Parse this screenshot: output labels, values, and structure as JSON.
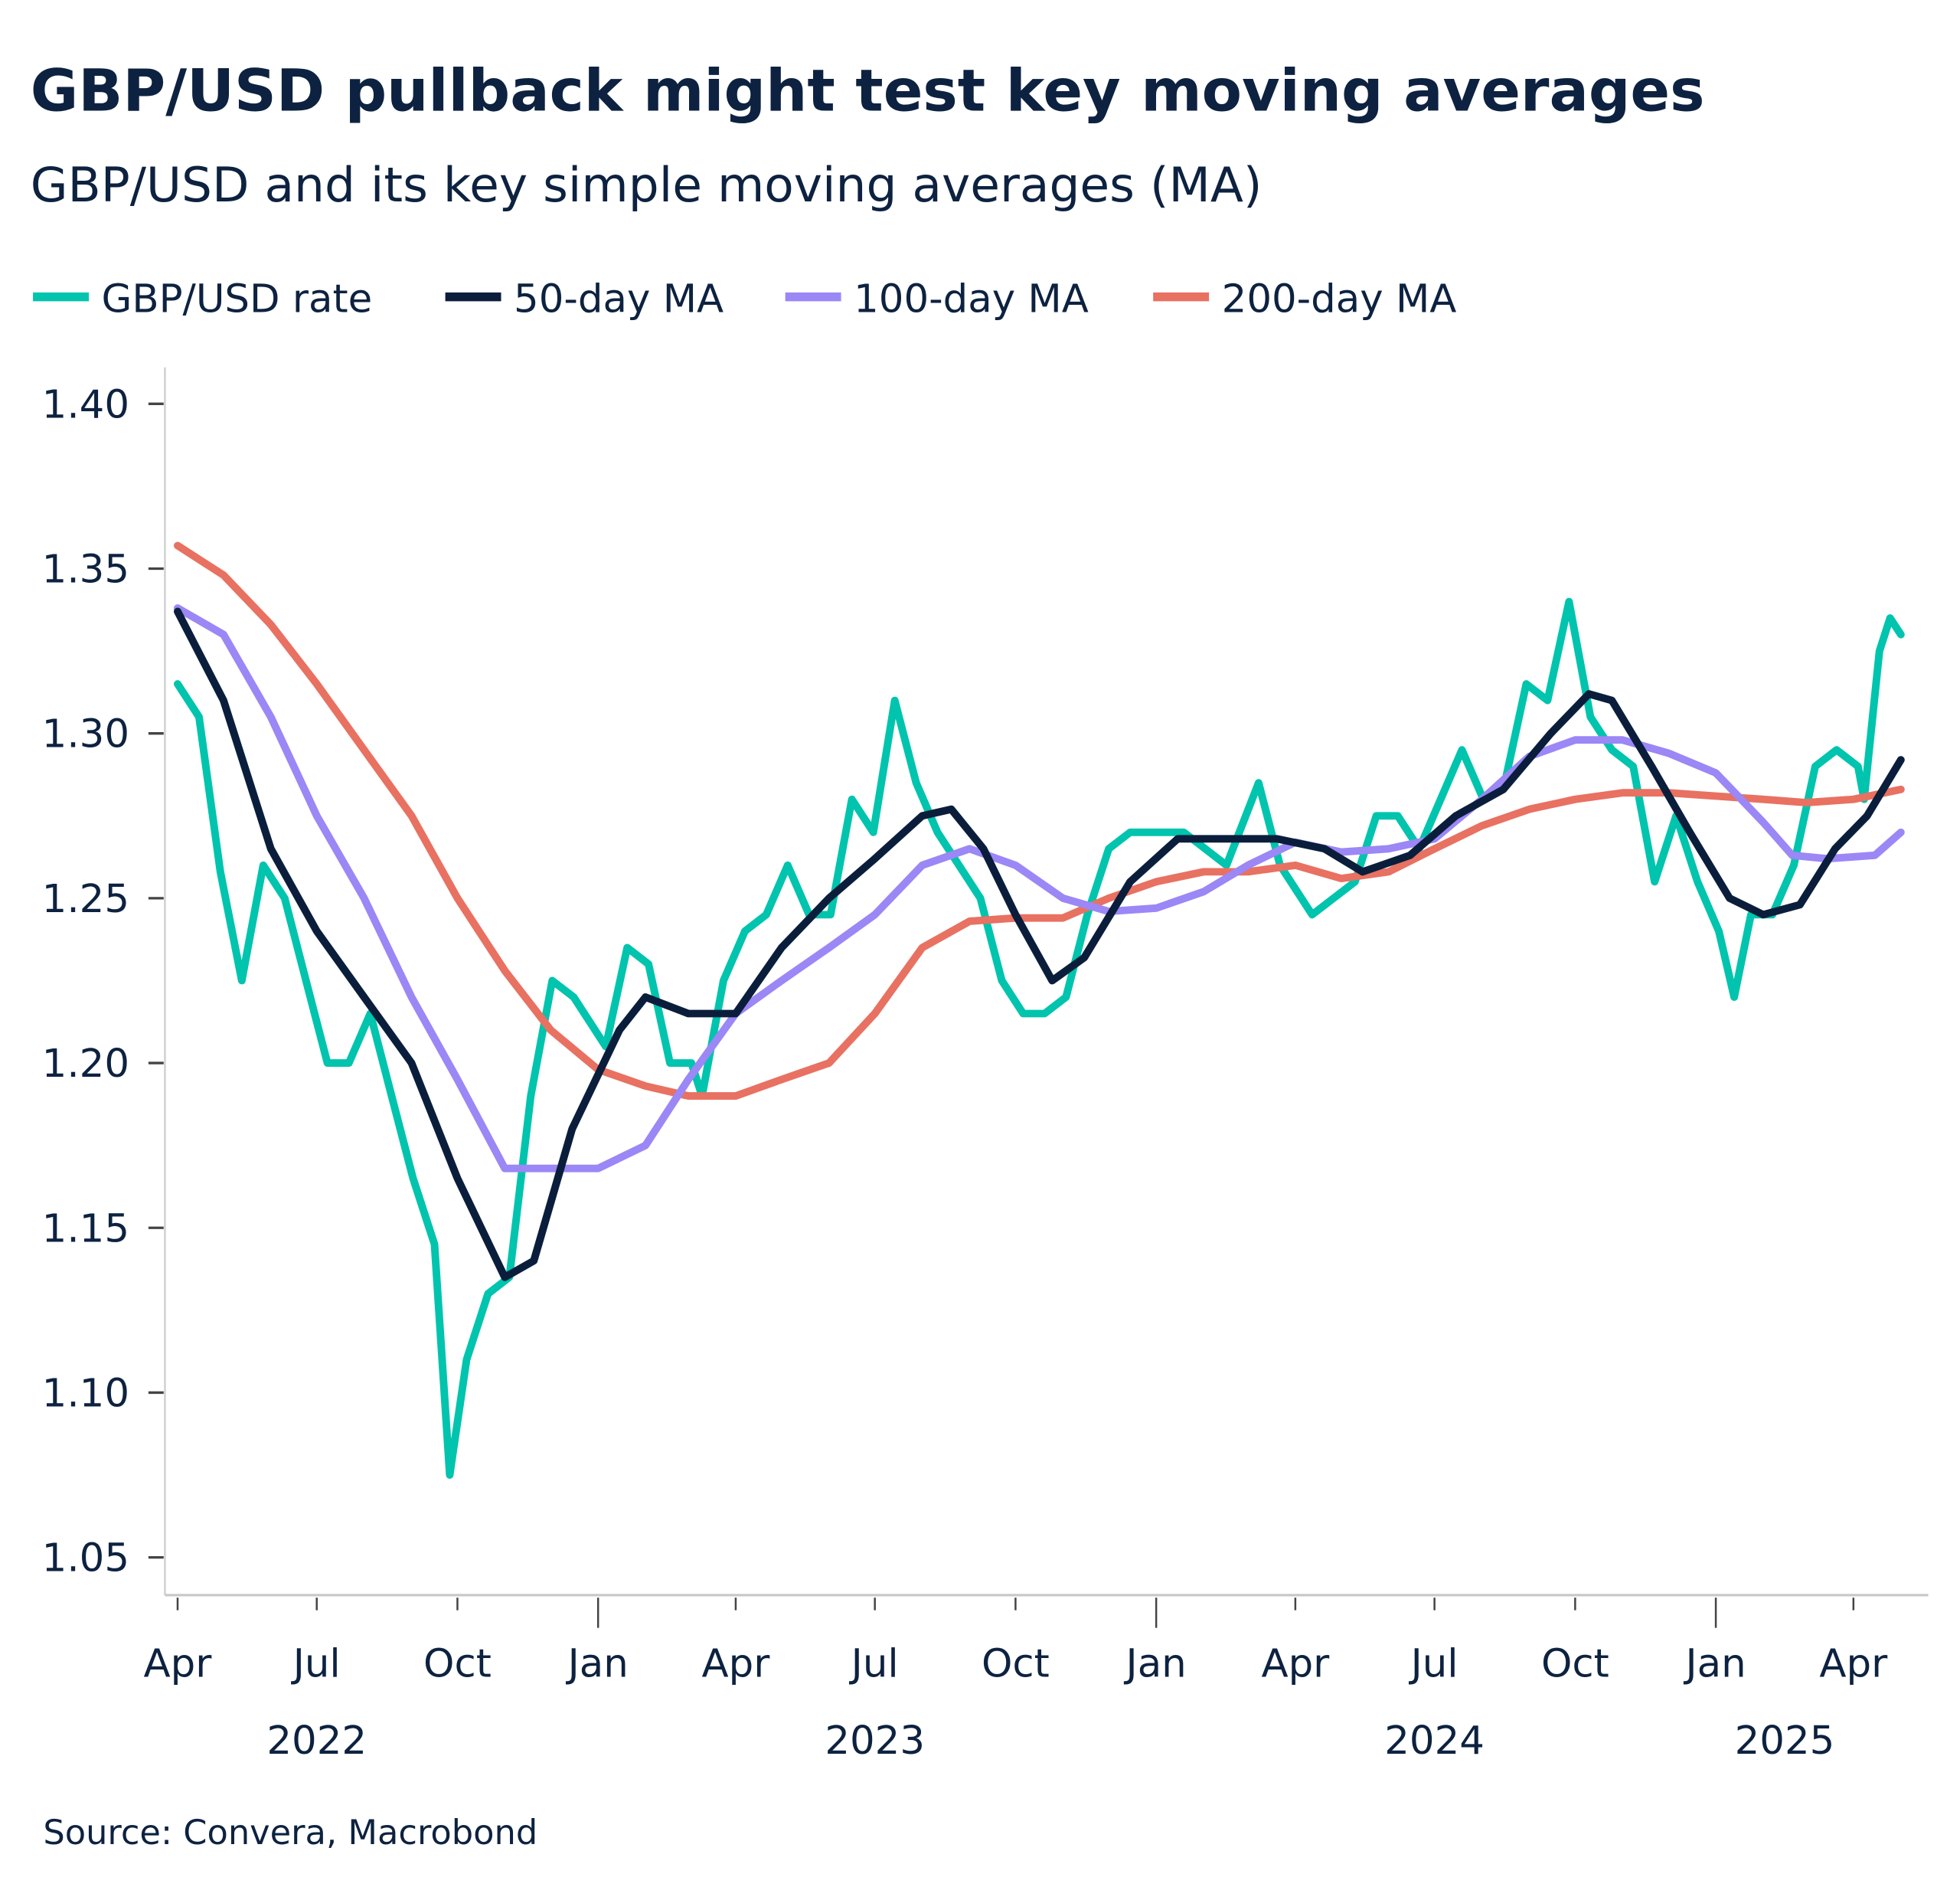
{
  "chart_data": {
    "type": "line",
    "title": "GBP/USD pullback might test key moving averages",
    "subtitle": "GBP/USD and its key simple moving averages (MA)",
    "source": "Source: Convera, Macrobond",
    "xlabel": "",
    "ylabel": "",
    "ylim": [
      1.04,
      1.41
    ],
    "yticks": [
      "1.40",
      "1.35",
      "1.30",
      "1.25",
      "1.20",
      "1.15",
      "1.10",
      "1.05"
    ],
    "xticks": [
      {
        "date": "2022-04-01",
        "label": "Apr"
      },
      {
        "date": "2022-07-01",
        "label": "Jul"
      },
      {
        "date": "2022-10-01",
        "label": "Oct"
      },
      {
        "date": "2023-01-01",
        "label": "Jan"
      },
      {
        "date": "2023-04-01",
        "label": "Apr"
      },
      {
        "date": "2023-07-01",
        "label": "Jul"
      },
      {
        "date": "2023-10-01",
        "label": "Oct"
      },
      {
        "date": "2024-01-01",
        "label": "Jan"
      },
      {
        "date": "2024-04-01",
        "label": "Apr"
      },
      {
        "date": "2024-07-01",
        "label": "Jul"
      },
      {
        "date": "2024-10-01",
        "label": "Oct"
      },
      {
        "date": "2025-01-01",
        "label": "Jan"
      },
      {
        "date": "2025-04-01",
        "label": "Apr"
      }
    ],
    "year_labels": [
      {
        "date": "2022-07-01",
        "label": "2022"
      },
      {
        "date": "2023-07-01",
        "label": "2023"
      },
      {
        "date": "2024-07-01",
        "label": "2024"
      },
      {
        "date": "2025-02-15",
        "label": "2025"
      }
    ],
    "grid": false,
    "legend_placement": "top",
    "series": [
      {
        "name": "GBP/USD rate",
        "color": "#00c4ad",
        "points": [
          [
            "2022-04-01",
            1.315
          ],
          [
            "2022-04-15",
            1.305
          ],
          [
            "2022-04-29",
            1.258
          ],
          [
            "2022-05-13",
            1.225
          ],
          [
            "2022-05-27",
            1.26
          ],
          [
            "2022-06-10",
            1.25
          ],
          [
            "2022-06-24",
            1.225
          ],
          [
            "2022-07-08",
            1.2
          ],
          [
            "2022-07-22",
            1.2
          ],
          [
            "2022-08-05",
            1.215
          ],
          [
            "2022-08-19",
            1.19
          ],
          [
            "2022-09-02",
            1.165
          ],
          [
            "2022-09-16",
            1.145
          ],
          [
            "2022-09-26",
            1.075
          ],
          [
            "2022-10-07",
            1.11
          ],
          [
            "2022-10-21",
            1.13
          ],
          [
            "2022-11-04",
            1.135
          ],
          [
            "2022-11-18",
            1.19
          ],
          [
            "2022-12-02",
            1.225
          ],
          [
            "2022-12-16",
            1.22
          ],
          [
            "2023-01-06",
            1.205
          ],
          [
            "2023-01-20",
            1.235
          ],
          [
            "2023-02-03",
            1.23
          ],
          [
            "2023-02-17",
            1.2
          ],
          [
            "2023-03-03",
            1.2
          ],
          [
            "2023-03-10",
            1.19
          ],
          [
            "2023-03-24",
            1.225
          ],
          [
            "2023-04-07",
            1.24
          ],
          [
            "2023-04-21",
            1.245
          ],
          [
            "2023-05-05",
            1.26
          ],
          [
            "2023-05-19",
            1.245
          ],
          [
            "2023-06-02",
            1.245
          ],
          [
            "2023-06-16",
            1.28
          ],
          [
            "2023-06-30",
            1.27
          ],
          [
            "2023-07-14",
            1.31
          ],
          [
            "2023-07-28",
            1.285
          ],
          [
            "2023-08-11",
            1.27
          ],
          [
            "2023-08-25",
            1.26
          ],
          [
            "2023-09-08",
            1.25
          ],
          [
            "2023-09-22",
            1.225
          ],
          [
            "2023-10-06",
            1.215
          ],
          [
            "2023-10-20",
            1.215
          ],
          [
            "2023-11-03",
            1.22
          ],
          [
            "2023-11-17",
            1.245
          ],
          [
            "2023-12-01",
            1.265
          ],
          [
            "2023-12-15",
            1.27
          ],
          [
            "2024-01-05",
            1.27
          ],
          [
            "2024-01-19",
            1.27
          ],
          [
            "2024-02-02",
            1.265
          ],
          [
            "2024-02-16",
            1.26
          ],
          [
            "2024-03-08",
            1.285
          ],
          [
            "2024-03-22",
            1.26
          ],
          [
            "2024-04-12",
            1.245
          ],
          [
            "2024-04-26",
            1.25
          ],
          [
            "2024-05-10",
            1.255
          ],
          [
            "2024-05-24",
            1.275
          ],
          [
            "2024-06-07",
            1.275
          ],
          [
            "2024-06-21",
            1.265
          ],
          [
            "2024-07-05",
            1.28
          ],
          [
            "2024-07-19",
            1.295
          ],
          [
            "2024-08-02",
            1.28
          ],
          [
            "2024-08-16",
            1.285
          ],
          [
            "2024-08-30",
            1.315
          ],
          [
            "2024-09-13",
            1.31
          ],
          [
            "2024-09-27",
            1.34
          ],
          [
            "2024-10-11",
            1.305
          ],
          [
            "2024-10-25",
            1.295
          ],
          [
            "2024-11-08",
            1.29
          ],
          [
            "2024-11-22",
            1.255
          ],
          [
            "2024-12-06",
            1.275
          ],
          [
            "2024-12-20",
            1.255
          ],
          [
            "2025-01-03",
            1.24
          ],
          [
            "2025-01-13",
            1.22
          ],
          [
            "2025-01-24",
            1.245
          ],
          [
            "2025-02-07",
            1.245
          ],
          [
            "2025-02-21",
            1.26
          ],
          [
            "2025-03-07",
            1.29
          ],
          [
            "2025-03-21",
            1.295
          ],
          [
            "2025-04-04",
            1.29
          ],
          [
            "2025-04-08",
            1.28
          ],
          [
            "2025-04-18",
            1.325
          ],
          [
            "2025-04-25",
            1.335
          ],
          [
            "2025-05-02",
            1.33
          ]
        ]
      },
      {
        "name": "50-day MA",
        "color": "#0a1e3c",
        "points": [
          [
            "2022-04-01",
            1.337
          ],
          [
            "2022-05-01",
            1.31
          ],
          [
            "2022-06-01",
            1.265
          ],
          [
            "2022-07-01",
            1.24
          ],
          [
            "2022-08-01",
            1.22
          ],
          [
            "2022-09-01",
            1.2
          ],
          [
            "2022-10-01",
            1.165
          ],
          [
            "2022-11-01",
            1.135
          ],
          [
            "2022-11-20",
            1.14
          ],
          [
            "2022-12-15",
            1.18
          ],
          [
            "2023-01-15",
            1.21
          ],
          [
            "2023-02-01",
            1.22
          ],
          [
            "2023-03-01",
            1.215
          ],
          [
            "2023-04-01",
            1.215
          ],
          [
            "2023-05-01",
            1.235
          ],
          [
            "2023-06-01",
            1.25
          ],
          [
            "2023-07-01",
            1.262
          ],
          [
            "2023-08-01",
            1.275
          ],
          [
            "2023-08-20",
            1.277
          ],
          [
            "2023-09-10",
            1.265
          ],
          [
            "2023-10-01",
            1.245
          ],
          [
            "2023-10-25",
            1.225
          ],
          [
            "2023-11-15",
            1.232
          ],
          [
            "2023-12-15",
            1.255
          ],
          [
            "2024-01-15",
            1.268
          ],
          [
            "2024-02-15",
            1.268
          ],
          [
            "2024-03-20",
            1.268
          ],
          [
            "2024-04-20",
            1.265
          ],
          [
            "2024-05-15",
            1.258
          ],
          [
            "2024-06-15",
            1.263
          ],
          [
            "2024-07-15",
            1.275
          ],
          [
            "2024-08-15",
            1.283
          ],
          [
            "2024-09-15",
            1.3
          ],
          [
            "2024-10-10",
            1.312
          ],
          [
            "2024-10-25",
            1.31
          ],
          [
            "2024-11-20",
            1.29
          ],
          [
            "2024-12-15",
            1.27
          ],
          [
            "2025-01-10",
            1.25
          ],
          [
            "2025-02-01",
            1.245
          ],
          [
            "2025-02-25",
            1.248
          ],
          [
            "2025-03-20",
            1.265
          ],
          [
            "2025-04-10",
            1.275
          ],
          [
            "2025-05-02",
            1.292
          ]
        ]
      },
      {
        "name": "100-day MA",
        "color": "#9b87f5",
        "points": [
          [
            "2022-04-01",
            1.338
          ],
          [
            "2022-05-01",
            1.33
          ],
          [
            "2022-06-01",
            1.305
          ],
          [
            "2022-07-01",
            1.275
          ],
          [
            "2022-08-01",
            1.25
          ],
          [
            "2022-09-01",
            1.22
          ],
          [
            "2022-10-01",
            1.195
          ],
          [
            "2022-11-01",
            1.168
          ],
          [
            "2022-12-01",
            1.168
          ],
          [
            "2023-01-01",
            1.168
          ],
          [
            "2023-02-01",
            1.175
          ],
          [
            "2023-03-01",
            1.195
          ],
          [
            "2023-04-01",
            1.215
          ],
          [
            "2023-05-01",
            1.225
          ],
          [
            "2023-06-01",
            1.235
          ],
          [
            "2023-07-01",
            1.245
          ],
          [
            "2023-08-01",
            1.26
          ],
          [
            "2023-09-01",
            1.265
          ],
          [
            "2023-10-01",
            1.26
          ],
          [
            "2023-11-01",
            1.25
          ],
          [
            "2023-12-01",
            1.246
          ],
          [
            "2024-01-01",
            1.247
          ],
          [
            "2024-02-01",
            1.252
          ],
          [
            "2024-03-01",
            1.26
          ],
          [
            "2024-04-01",
            1.267
          ],
          [
            "2024-05-01",
            1.264
          ],
          [
            "2024-06-01",
            1.265
          ],
          [
            "2024-07-01",
            1.268
          ],
          [
            "2024-08-01",
            1.28
          ],
          [
            "2024-09-01",
            1.293
          ],
          [
            "2024-10-01",
            1.298
          ],
          [
            "2024-11-01",
            1.298
          ],
          [
            "2024-12-01",
            1.294
          ],
          [
            "2025-01-01",
            1.288
          ],
          [
            "2025-02-01",
            1.273
          ],
          [
            "2025-02-20",
            1.263
          ],
          [
            "2025-03-15",
            1.262
          ],
          [
            "2025-04-15",
            1.263
          ],
          [
            "2025-05-02",
            1.27
          ]
        ]
      },
      {
        "name": "200-day MA",
        "color": "#e87161",
        "points": [
          [
            "2022-04-01",
            1.357
          ],
          [
            "2022-05-01",
            1.348
          ],
          [
            "2022-06-01",
            1.333
          ],
          [
            "2022-07-01",
            1.315
          ],
          [
            "2022-08-01",
            1.295
          ],
          [
            "2022-09-01",
            1.275
          ],
          [
            "2022-10-01",
            1.25
          ],
          [
            "2022-11-01",
            1.228
          ],
          [
            "2022-12-01",
            1.21
          ],
          [
            "2023-01-01",
            1.198
          ],
          [
            "2023-02-01",
            1.193
          ],
          [
            "2023-03-01",
            1.19
          ],
          [
            "2023-04-01",
            1.19
          ],
          [
            "2023-05-01",
            1.195
          ],
          [
            "2023-06-01",
            1.2
          ],
          [
            "2023-07-01",
            1.215
          ],
          [
            "2023-08-01",
            1.235
          ],
          [
            "2023-09-01",
            1.243
          ],
          [
            "2023-10-01",
            1.244
          ],
          [
            "2023-11-01",
            1.244
          ],
          [
            "2023-12-01",
            1.25
          ],
          [
            "2024-01-01",
            1.255
          ],
          [
            "2024-02-01",
            1.258
          ],
          [
            "2024-03-01",
            1.258
          ],
          [
            "2024-04-01",
            1.26
          ],
          [
            "2024-05-01",
            1.256
          ],
          [
            "2024-06-01",
            1.258
          ],
          [
            "2024-07-01",
            1.265
          ],
          [
            "2024-08-01",
            1.272
          ],
          [
            "2024-09-01",
            1.277
          ],
          [
            "2024-10-01",
            1.28
          ],
          [
            "2024-11-01",
            1.282
          ],
          [
            "2024-12-01",
            1.282
          ],
          [
            "2025-01-01",
            1.281
          ],
          [
            "2025-02-01",
            1.28
          ],
          [
            "2025-03-01",
            1.279
          ],
          [
            "2025-04-01",
            1.28
          ],
          [
            "2025-05-02",
            1.283
          ]
        ]
      }
    ]
  }
}
